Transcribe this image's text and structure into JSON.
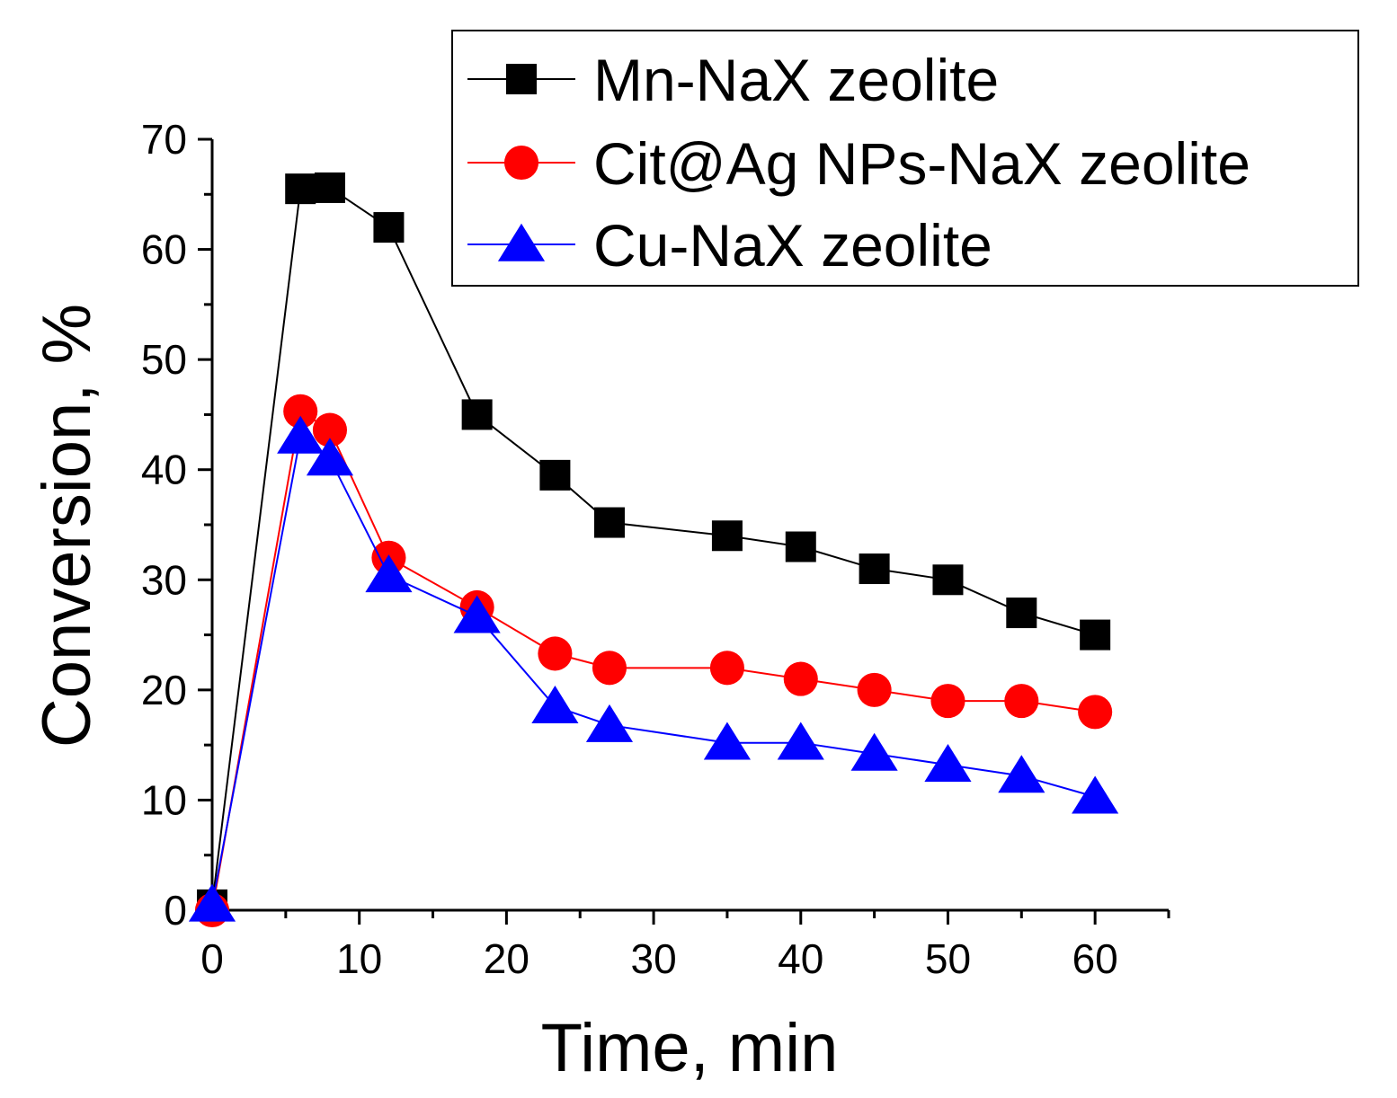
{
  "chart_data": {
    "type": "line",
    "title": "",
    "xlabel": "Time, min",
    "ylabel": "Conversion, %",
    "xlim": [
      0,
      65
    ],
    "ylim": [
      0,
      70
    ],
    "x_ticks": [
      "0",
      "10",
      "20",
      "30",
      "40",
      "50",
      "60"
    ],
    "y_ticks": [
      "0",
      "10",
      "20",
      "30",
      "40",
      "50",
      "60",
      "70"
    ],
    "grid": false,
    "legend_position": "top-right",
    "series": [
      {
        "name": "Mn-NaX zeolite",
        "color": "#000000",
        "marker": "square",
        "x": [
          0,
          6,
          8,
          12,
          18,
          23.3,
          27,
          35,
          40,
          45,
          50,
          55,
          60
        ],
        "y": [
          0.5,
          65.5,
          65.6,
          62,
          45,
          39.5,
          35.2,
          34,
          33,
          31,
          30,
          27,
          25
        ]
      },
      {
        "name": "Cit@Ag NPs-NaX zeolite",
        "color": "#ff0000",
        "marker": "circle",
        "x": [
          0,
          6,
          8,
          12,
          18,
          23.3,
          27,
          35,
          40,
          45,
          50,
          55,
          60
        ],
        "y": [
          0,
          45.3,
          43.6,
          32,
          27.5,
          23.3,
          22,
          22,
          21,
          20,
          19,
          19,
          18
        ]
      },
      {
        "name": "Cu-NaX zeolite",
        "color": "#0000ff",
        "marker": "triangle",
        "x": [
          0,
          6,
          8,
          12,
          18,
          23.3,
          27,
          35,
          40,
          45,
          50,
          55,
          60
        ],
        "y": [
          0.5,
          43,
          41,
          30.4,
          26.7,
          18.5,
          16.8,
          15.2,
          15.2,
          14.2,
          13.2,
          12.2,
          10.3
        ]
      }
    ]
  }
}
